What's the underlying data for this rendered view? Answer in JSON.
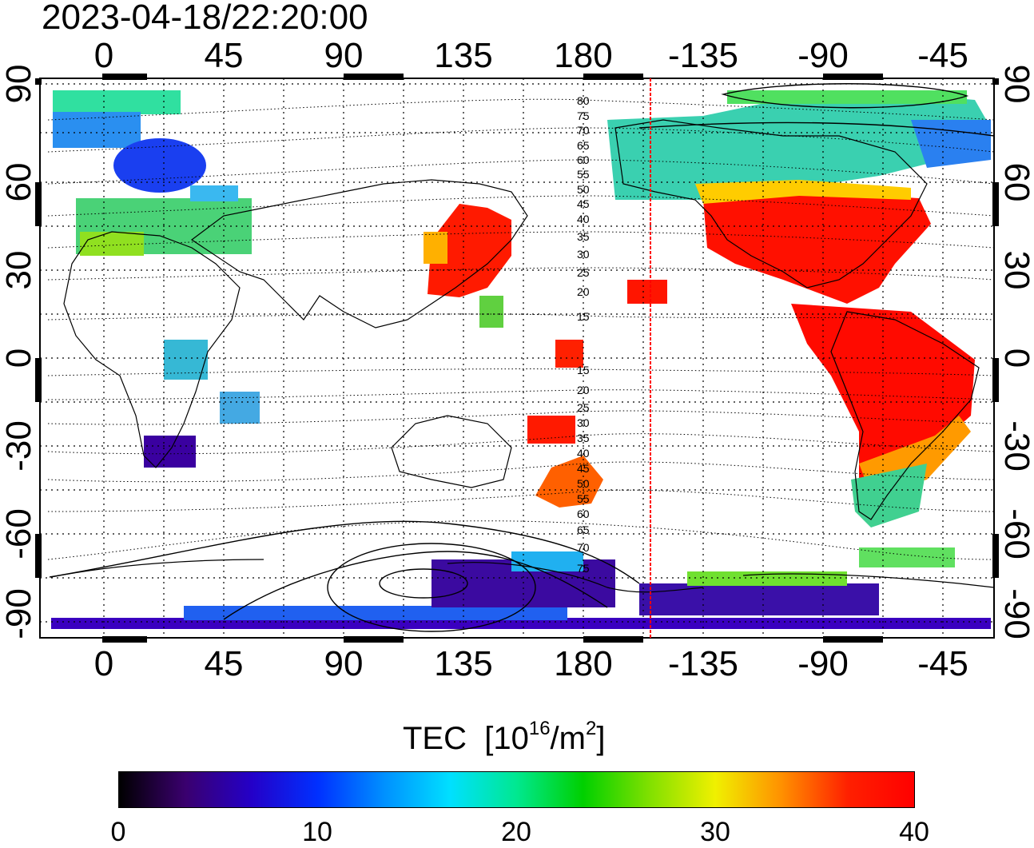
{
  "timestamp": "2023-04-18/22:20:00",
  "map": {
    "lon_ticks": [
      "0",
      "45",
      "90",
      "135",
      "180",
      "-135",
      "-90",
      "-45"
    ],
    "lat_ticks": [
      "90",
      "60",
      "30",
      "0",
      "-30",
      "-60",
      "-90"
    ],
    "magnetic_lat_labels": [
      "80",
      "75",
      "70",
      "65",
      "60",
      "55",
      "50",
      "45",
      "40",
      "35",
      "30",
      "25",
      "20",
      "15",
      "15",
      "20",
      "25",
      "30",
      "35",
      "40",
      "45",
      "50",
      "55",
      "60",
      "65",
      "70",
      "75"
    ],
    "terminator_color": "#ff0000",
    "grid": "dotted"
  },
  "colorbar": {
    "title": "TEC",
    "unit_prefix": "[10",
    "unit_exp1": "16",
    "unit_mid": "/m",
    "unit_exp2": "2",
    "unit_suffix": "]",
    "ticks": [
      "0",
      "10",
      "20",
      "30",
      "40"
    ],
    "colors": [
      "#000000",
      "#3a006e",
      "#2400c8",
      "#0030ff",
      "#0090ff",
      "#00e0ff",
      "#00e890",
      "#00d000",
      "#80e000",
      "#f0f000",
      "#ff9000",
      "#ff2000",
      "#ff0000"
    ]
  }
}
